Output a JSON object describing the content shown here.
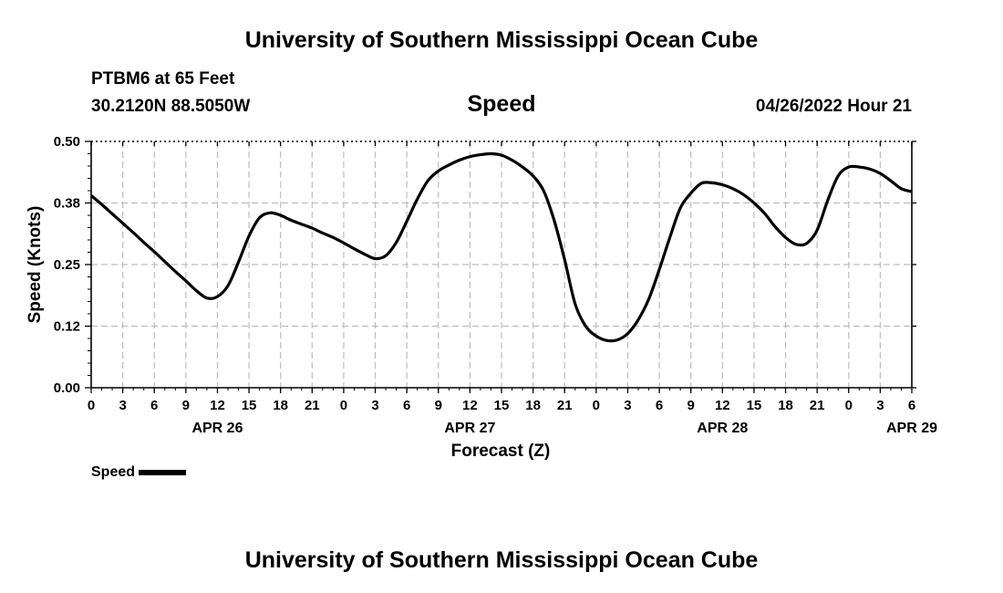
{
  "header": {
    "title": "University of Southern Mississippi Ocean Cube",
    "station": "PTBM6 at 65 Feet",
    "coordinates": "30.2120N  88.5050W",
    "variable": "Speed",
    "run_time": "04/26/2022 Hour 21"
  },
  "footer": {
    "title": "University of Southern Mississippi Ocean Cube"
  },
  "legend": {
    "label": "Speed"
  },
  "chart_data": {
    "type": "line",
    "title": "Speed",
    "xlabel": "Forecast (Z)",
    "ylabel": "Speed (Knots)",
    "ylim": [
      0,
      0.5
    ],
    "yticks": [
      "0.00",
      "0.12",
      "0.25",
      "0.38",
      "0.50"
    ],
    "xlim": [
      0,
      78
    ],
    "xtick_labels": [
      "0",
      "3",
      "6",
      "9",
      "12",
      "15",
      "18",
      "21",
      "0",
      "3",
      "6",
      "9",
      "12",
      "15",
      "18",
      "21",
      "0",
      "3",
      "6",
      "9",
      "12",
      "15",
      "18",
      "21",
      "0",
      "3",
      "6"
    ],
    "date_labels": [
      {
        "label": "APR 26",
        "hour": 12
      },
      {
        "label": "APR 27",
        "hour": 36
      },
      {
        "label": "APR 28",
        "hour": 60
      },
      {
        "label": "APR 29",
        "hour": 78
      }
    ],
    "grid": true,
    "legend_position": "bottom-left",
    "color": "#000000",
    "series": [
      {
        "name": "Speed",
        "x": [
          0,
          1,
          2,
          3,
          4,
          5,
          6,
          7,
          8,
          9,
          10,
          11,
          12,
          13,
          14,
          15,
          16,
          17,
          18,
          19,
          20,
          21,
          22,
          23,
          24,
          25,
          26,
          27,
          28,
          29,
          30,
          31,
          32,
          33,
          34,
          35,
          36,
          37,
          38,
          39,
          40,
          41,
          42,
          43,
          44,
          45,
          46,
          47,
          48,
          49,
          50,
          51,
          52,
          53,
          54,
          55,
          56,
          57,
          58,
          59,
          60,
          61,
          62,
          63,
          64,
          65,
          66,
          67,
          68,
          69,
          70,
          71,
          72,
          73,
          74,
          75,
          76,
          77,
          78
        ],
        "values": [
          0.39,
          0.372,
          0.353,
          0.334,
          0.315,
          0.295,
          0.276,
          0.256,
          0.236,
          0.217,
          0.197,
          0.182,
          0.185,
          0.207,
          0.255,
          0.308,
          0.345,
          0.355,
          0.35,
          0.34,
          0.332,
          0.324,
          0.314,
          0.305,
          0.294,
          0.282,
          0.271,
          0.262,
          0.268,
          0.295,
          0.338,
          0.383,
          0.42,
          0.44,
          0.452,
          0.462,
          0.469,
          0.473,
          0.475,
          0.472,
          0.462,
          0.448,
          0.43,
          0.4,
          0.34,
          0.26,
          0.17,
          0.125,
          0.105,
          0.096,
          0.097,
          0.11,
          0.138,
          0.18,
          0.24,
          0.305,
          0.365,
          0.395,
          0.415,
          0.416,
          0.412,
          0.404,
          0.392,
          0.375,
          0.354,
          0.327,
          0.305,
          0.291,
          0.293,
          0.32,
          0.38,
          0.43,
          0.448,
          0.448,
          0.444,
          0.435,
          0.42,
          0.404,
          0.398
        ]
      }
    ]
  }
}
